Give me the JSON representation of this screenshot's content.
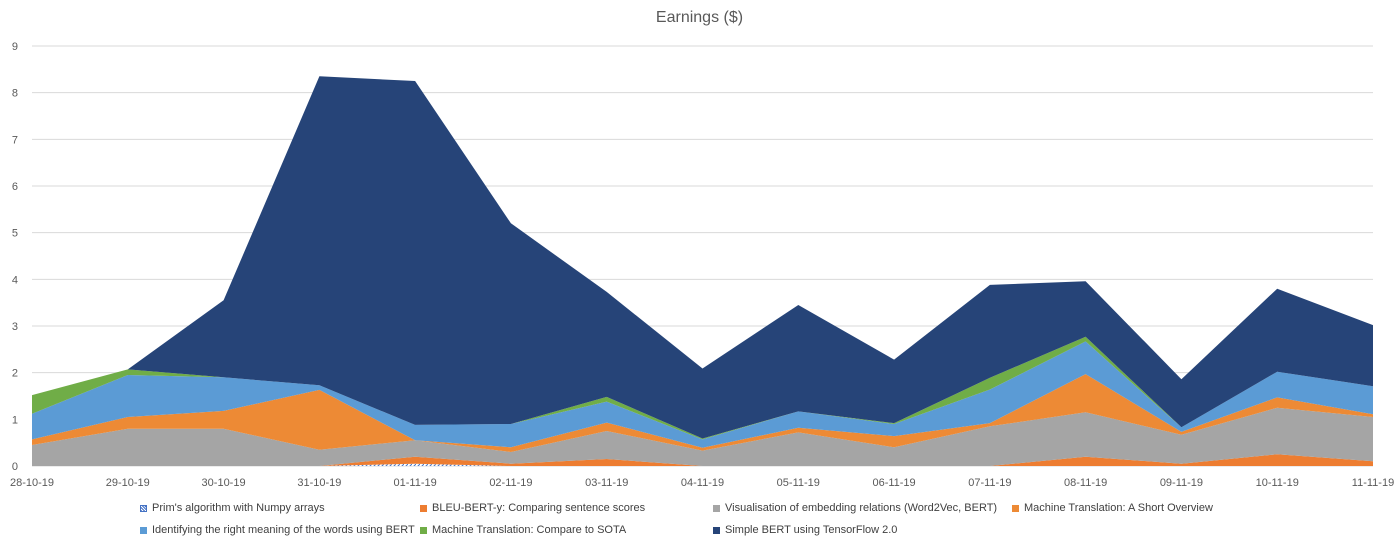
{
  "chart_data": {
    "type": "area",
    "stacked": true,
    "title": "Earnings ($)",
    "xlabel": "",
    "ylabel": "",
    "ylim": [
      0,
      9
    ],
    "y_ticks": [
      "0",
      "1",
      "2",
      "3",
      "4",
      "5",
      "6",
      "7",
      "8",
      "9"
    ],
    "grid": true,
    "legend_position": "bottom",
    "categories": [
      "28-10-19",
      "29-10-19",
      "30-10-19",
      "31-10-19",
      "01-11-19",
      "02-11-19",
      "03-11-19",
      "04-11-19",
      "05-11-19",
      "06-11-19",
      "07-11-19",
      "08-11-19",
      "09-11-19",
      "10-11-19",
      "11-11-19"
    ],
    "series": [
      {
        "name": "Prim's algorithm with Numpy arrays",
        "color": "#4472c4",
        "pattern": "hatched",
        "values": [
          0,
          0,
          0,
          0,
          0.05,
          0,
          0,
          0,
          0,
          0,
          0,
          0,
          0,
          0,
          0
        ]
      },
      {
        "name": "BLEU-BERT-y: Comparing sentence scores",
        "color": "#ed7d31",
        "values": [
          0,
          0,
          0,
          0,
          0.15,
          0.05,
          0.15,
          0,
          0,
          0,
          0,
          0.2,
          0.05,
          0.25,
          0.1
        ]
      },
      {
        "name": "Visualisation of embedding relations (Word2Vec, BERT)",
        "color": "#a5a5a5",
        "values": [
          0.45,
          0.8,
          0.8,
          0.35,
          0.35,
          0.25,
          0.6,
          0.33,
          0.72,
          0.4,
          0.85,
          0.95,
          0.62,
          1.0,
          0.95
        ]
      },
      {
        "name": "Machine Translation: A Short Overview",
        "color": "#ed8a35",
        "values": [
          0.12,
          0.25,
          0.38,
          1.28,
          0,
          0.1,
          0.18,
          0.06,
          0.1,
          0.24,
          0.07,
          0.82,
          0.06,
          0.22,
          0.06
        ]
      },
      {
        "name": "Identifying the right meaning of the words using BERT",
        "color": "#5b9bd5",
        "values": [
          0.55,
          0.9,
          0.72,
          0.1,
          0.33,
          0.5,
          0.45,
          0.18,
          0.35,
          0.26,
          0.72,
          0.7,
          0.1,
          0.55,
          0.6
        ]
      },
      {
        "name": "Machine Translation: Compare to SOTA",
        "color": "#70ad47",
        "values": [
          0.4,
          0.12,
          0,
          0,
          0,
          0,
          0.1,
          0.02,
          0,
          0.02,
          0.25,
          0.1,
          0,
          0,
          0
        ]
      },
      {
        "name": "Simple BERT using TensorFlow 2.0",
        "color": "#264478",
        "values": [
          0,
          0,
          1.65,
          6.62,
          7.37,
          4.3,
          2.25,
          1.5,
          2.28,
          1.36,
          1.99,
          1.19,
          1.03,
          1.78,
          1.31
        ]
      }
    ],
    "legend_rows": [
      [
        0,
        1,
        2,
        3
      ],
      [
        4,
        5,
        6
      ]
    ]
  }
}
